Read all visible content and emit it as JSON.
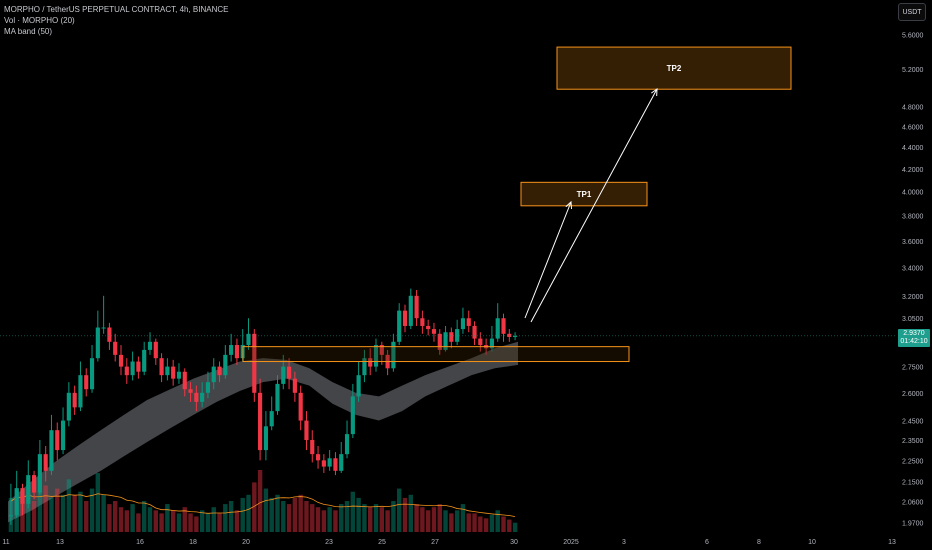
{
  "header": {
    "title": "MORPHO / TetherUS PERPETUAL CONTRACT, 4h, BINANCE",
    "vol_label": "Vol · MORPHO (20)",
    "ma_label": "MA band (50)",
    "currency": "USDT"
  },
  "price_tag": {
    "price": "2.9370",
    "countdown": "01:42:10"
  },
  "colors": {
    "background": "#000000",
    "up": "#089981",
    "down": "#f23645",
    "zone_border": "#f7931a",
    "zone_fill": "#3a2104",
    "band": "#9598a1",
    "volume_ma": "#f7931a",
    "arrow": "#ffffff"
  },
  "chart_data": {
    "type": "candlestick",
    "y_axis": {
      "scale": "log",
      "range": [
        1.93,
        5.85
      ],
      "tick_labels": [
        "5.6000",
        "5.2000",
        "4.8000",
        "4.6000",
        "4.4000",
        "4.2000",
        "4.0000",
        "3.8000",
        "3.6000",
        "3.4000",
        "3.2000",
        "3.0500",
        "2.7500",
        "2.6000",
        "2.4500",
        "2.3500",
        "2.2500",
        "2.1500",
        "2.0600",
        "1.9700"
      ]
    },
    "x_axis": {
      "tick_labels": [
        "11",
        "13",
        "16",
        "18",
        "20",
        "23",
        "25",
        "27",
        "30",
        "2025",
        "3",
        "6",
        "8",
        "10",
        "13"
      ]
    },
    "current_price": 2.937,
    "candles": [
      [
        2.0,
        2.0,
        2.14,
        1.96
      ],
      [
        2.0,
        2.12,
        2.2,
        1.99
      ],
      [
        2.12,
        2.05,
        2.14,
        2.0
      ],
      [
        2.05,
        2.18,
        2.25,
        2.03
      ],
      [
        2.18,
        2.1,
        2.2,
        2.07
      ],
      [
        2.1,
        2.28,
        2.35,
        2.09
      ],
      [
        2.28,
        2.2,
        2.32,
        2.15
      ],
      [
        2.2,
        2.4,
        2.48,
        2.18
      ],
      [
        2.4,
        2.3,
        2.44,
        2.25
      ],
      [
        2.3,
        2.45,
        2.52,
        2.28
      ],
      [
        2.45,
        2.6,
        2.66,
        2.42
      ],
      [
        2.6,
        2.52,
        2.64,
        2.48
      ],
      [
        2.52,
        2.7,
        2.78,
        2.5
      ],
      [
        2.7,
        2.62,
        2.74,
        2.58
      ],
      [
        2.62,
        2.8,
        2.88,
        2.6
      ],
      [
        2.8,
        2.99,
        3.1,
        2.78
      ],
      [
        2.99,
        2.99,
        3.2,
        2.95
      ],
      [
        2.99,
        2.9,
        3.02,
        2.85
      ],
      [
        2.9,
        2.82,
        2.95,
        2.78
      ],
      [
        2.82,
        2.75,
        2.88,
        2.7
      ],
      [
        2.75,
        2.7,
        2.8,
        2.65
      ],
      [
        2.7,
        2.78,
        2.84,
        2.67
      ],
      [
        2.78,
        2.72,
        2.81,
        2.68
      ],
      [
        2.72,
        2.85,
        2.9,
        2.7
      ],
      [
        2.85,
        2.9,
        2.96,
        2.82
      ],
      [
        2.9,
        2.8,
        2.92,
        2.76
      ],
      [
        2.8,
        2.7,
        2.83,
        2.66
      ],
      [
        2.7,
        2.75,
        2.8,
        2.67
      ],
      [
        2.75,
        2.68,
        2.79,
        2.64
      ],
      [
        2.68,
        2.72,
        2.77,
        2.65
      ],
      [
        2.72,
        2.62,
        2.74,
        2.58
      ],
      [
        2.62,
        2.6,
        2.66,
        2.55
      ],
      [
        2.6,
        2.55,
        2.64,
        2.5
      ],
      [
        2.55,
        2.6,
        2.66,
        2.52
      ],
      [
        2.6,
        2.66,
        2.72,
        2.57
      ],
      [
        2.66,
        2.75,
        2.8,
        2.62
      ],
      [
        2.75,
        2.7,
        2.78,
        2.66
      ],
      [
        2.7,
        2.82,
        2.88,
        2.68
      ],
      [
        2.82,
        2.88,
        2.95,
        2.78
      ],
      [
        2.88,
        2.8,
        2.92,
        2.76
      ],
      [
        2.8,
        2.88,
        2.98,
        2.78
      ],
      [
        2.88,
        2.95,
        3.05,
        2.85
      ],
      [
        2.95,
        2.6,
        2.98,
        2.55
      ],
      [
        2.6,
        2.3,
        2.68,
        2.25
      ],
      [
        2.3,
        2.42,
        2.5,
        2.25
      ],
      [
        2.42,
        2.5,
        2.58,
        2.4
      ],
      [
        2.5,
        2.65,
        2.7,
        2.48
      ],
      [
        2.65,
        2.75,
        2.82,
        2.62
      ],
      [
        2.75,
        2.68,
        2.8,
        2.62
      ],
      [
        2.68,
        2.6,
        2.72,
        2.55
      ],
      [
        2.6,
        2.45,
        2.64,
        2.4
      ],
      [
        2.45,
        2.35,
        2.5,
        2.3
      ],
      [
        2.35,
        2.28,
        2.4,
        2.24
      ],
      [
        2.28,
        2.25,
        2.32,
        2.21
      ],
      [
        2.25,
        2.22,
        2.28,
        2.19
      ],
      [
        2.22,
        2.26,
        2.3,
        2.2
      ],
      [
        2.26,
        2.2,
        2.29,
        2.18
      ],
      [
        2.2,
        2.28,
        2.34,
        2.19
      ],
      [
        2.28,
        2.38,
        2.45,
        2.26
      ],
      [
        2.38,
        2.58,
        2.65,
        2.36
      ],
      [
        2.58,
        2.7,
        2.78,
        2.55
      ],
      [
        2.7,
        2.8,
        2.85,
        2.66
      ],
      [
        2.8,
        2.75,
        2.86,
        2.7
      ],
      [
        2.75,
        2.88,
        2.92,
        2.72
      ],
      [
        2.88,
        2.82,
        2.9,
        2.76
      ],
      [
        2.82,
        2.74,
        2.85,
        2.7
      ],
      [
        2.74,
        2.9,
        2.95,
        2.72
      ],
      [
        2.9,
        3.1,
        3.15,
        2.88
      ],
      [
        3.1,
        3.0,
        3.14,
        2.96
      ],
      [
        3.0,
        3.2,
        3.25,
        2.98
      ],
      [
        3.2,
        3.05,
        3.24,
        3.0
      ],
      [
        3.05,
        3.0,
        3.1,
        2.95
      ],
      [
        3.0,
        2.98,
        3.04,
        2.94
      ],
      [
        2.98,
        2.95,
        3.02,
        2.9
      ],
      [
        2.95,
        2.85,
        2.98,
        2.82
      ],
      [
        2.85,
        2.96,
        3.0,
        2.84
      ],
      [
        2.96,
        2.9,
        2.99,
        2.86
      ],
      [
        2.9,
        2.98,
        3.04,
        2.88
      ],
      [
        2.98,
        3.05,
        3.12,
        2.95
      ],
      [
        3.05,
        3.0,
        3.1,
        2.96
      ],
      [
        3.0,
        2.92,
        3.03,
        2.88
      ],
      [
        2.92,
        2.88,
        2.96,
        2.84
      ],
      [
        2.88,
        2.86,
        2.92,
        2.82
      ],
      [
        2.86,
        2.92,
        3.0,
        2.84
      ],
      [
        2.92,
        3.05,
        3.15,
        2.9
      ],
      [
        3.05,
        2.95,
        3.08,
        2.9
      ],
      [
        2.95,
        2.93,
        2.98,
        2.9
      ],
      [
        2.93,
        2.937,
        2.96,
        2.91
      ]
    ],
    "volume": [
      0.55,
      0.7,
      0.6,
      0.8,
      0.5,
      0.65,
      0.75,
      0.55,
      0.7,
      0.6,
      0.85,
      0.6,
      0.65,
      0.5,
      0.7,
      0.95,
      0.6,
      0.45,
      0.5,
      0.4,
      0.35,
      0.45,
      0.3,
      0.5,
      0.4,
      0.35,
      0.3,
      0.45,
      0.35,
      0.3,
      0.4,
      0.3,
      0.25,
      0.35,
      0.3,
      0.4,
      0.3,
      0.45,
      0.5,
      0.35,
      0.55,
      0.6,
      0.8,
      1.0,
      0.7,
      0.55,
      0.6,
      0.5,
      0.45,
      0.55,
      0.6,
      0.5,
      0.45,
      0.4,
      0.35,
      0.4,
      0.35,
      0.45,
      0.5,
      0.65,
      0.55,
      0.45,
      0.4,
      0.45,
      0.4,
      0.35,
      0.5,
      0.7,
      0.55,
      0.6,
      0.45,
      0.4,
      0.35,
      0.4,
      0.45,
      0.35,
      0.3,
      0.35,
      0.45,
      0.3,
      0.3,
      0.25,
      0.22,
      0.28,
      0.35,
      0.25,
      0.2,
      0.15
    ],
    "ma_band": [
      [
        1.97,
        2.06
      ],
      [
        2.02,
        2.15
      ],
      [
        2.08,
        2.24
      ],
      [
        2.14,
        2.32
      ],
      [
        2.2,
        2.4
      ],
      [
        2.27,
        2.48
      ],
      [
        2.34,
        2.56
      ],
      [
        2.41,
        2.62
      ],
      [
        2.48,
        2.68
      ],
      [
        2.55,
        2.73
      ],
      [
        2.61,
        2.78
      ],
      [
        2.66,
        2.8
      ],
      [
        2.68,
        2.79
      ],
      [
        2.64,
        2.74
      ],
      [
        2.54,
        2.66
      ],
      [
        2.48,
        2.6
      ],
      [
        2.45,
        2.58
      ],
      [
        2.5,
        2.64
      ],
      [
        2.58,
        2.7
      ],
      [
        2.64,
        2.75
      ],
      [
        2.7,
        2.8
      ],
      [
        2.74,
        2.86
      ],
      [
        2.76,
        2.9
      ]
    ],
    "zones": [
      {
        "label": "",
        "y_low": 2.78,
        "y_high": 2.87
      },
      {
        "label": "TP1",
        "y_low": 3.88,
        "y_high": 4.08
      },
      {
        "label": "TP2",
        "y_low": 4.98,
        "y_high": 5.45
      }
    ]
  }
}
